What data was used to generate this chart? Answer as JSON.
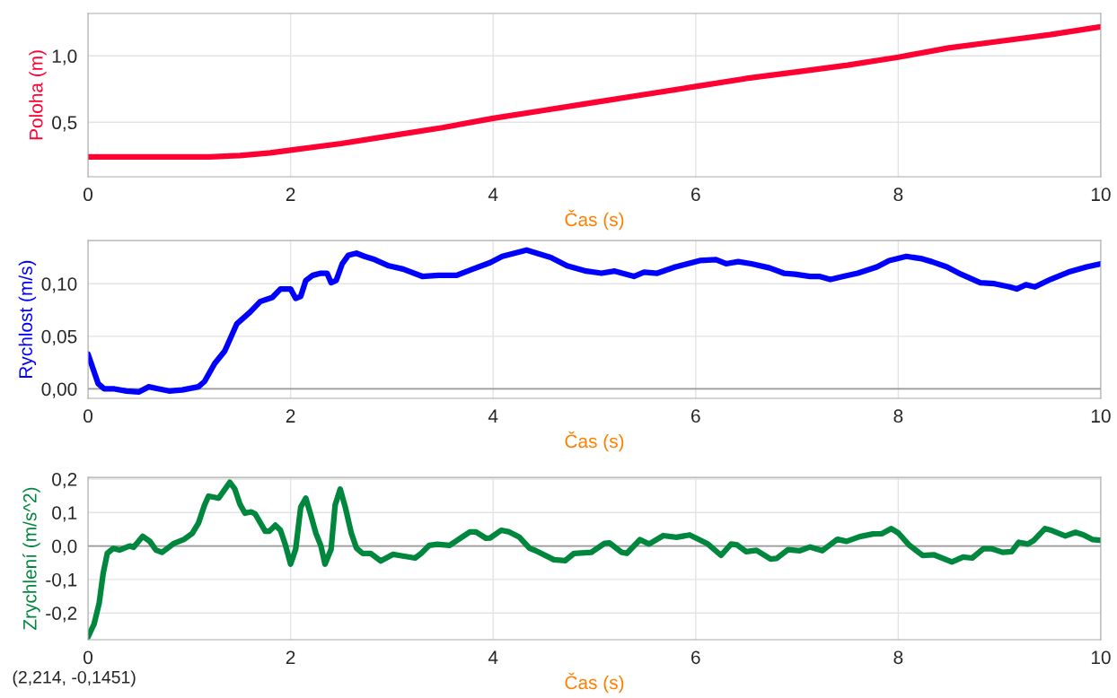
{
  "chart_data": [
    {
      "type": "line",
      "xlabel": "Čas (s)",
      "ylabel": "Poloha (m)",
      "grid": true,
      "xlim": [
        0,
        10
      ],
      "ylim": [
        0.09,
        1.32
      ],
      "xticks": [
        0,
        2,
        4,
        6,
        8,
        10
      ],
      "yticks": [
        {
          "value": 0.5,
          "label": "0,5"
        },
        {
          "value": 1.0,
          "label": "1,0"
        }
      ],
      "series": [
        {
          "name": null,
          "color": "#ff0033",
          "x": [
            0,
            0.5,
            1.0,
            1.2,
            1.5,
            1.8,
            2.0,
            2.5,
            3.0,
            3.5,
            4.0,
            4.5,
            5.0,
            5.5,
            6.0,
            6.5,
            7.0,
            7.5,
            8.0,
            8.5,
            9.0,
            9.5,
            10.0
          ],
          "values": [
            0.24,
            0.24,
            0.24,
            0.24,
            0.25,
            0.27,
            0.29,
            0.34,
            0.4,
            0.46,
            0.53,
            0.59,
            0.65,
            0.71,
            0.77,
            0.83,
            0.88,
            0.93,
            0.99,
            1.06,
            1.11,
            1.16,
            1.22
          ]
        }
      ]
    },
    {
      "type": "line",
      "xlabel": "Čas (s)",
      "ylabel": "Rychlost (m/s)",
      "grid": true,
      "xlim": [
        0,
        10
      ],
      "ylim": [
        -0.009,
        0.141
      ],
      "xticks": [
        0,
        2,
        4,
        6,
        8,
        10
      ],
      "yticks": [
        {
          "value": 0,
          "label": "0,00"
        },
        {
          "value": 0.05,
          "label": "0,05"
        },
        {
          "value": 0.1,
          "label": "0,10"
        }
      ],
      "ref_lines": [
        {
          "axis": "y",
          "value": 0,
          "color": "#9a9a9a"
        }
      ],
      "series": [
        {
          "name": null,
          "color": "#0000ff",
          "x": [
            0,
            0.1,
            0.16,
            0.26,
            0.38,
            0.5,
            0.6,
            0.7,
            0.8,
            0.93,
            1.09,
            1.15,
            1.25,
            1.35,
            1.47,
            1.6,
            1.7,
            1.82,
            1.9,
            2.0,
            2.05,
            2.1,
            2.15,
            2.22,
            2.3,
            2.36,
            2.4,
            2.45,
            2.51,
            2.57,
            2.65,
            2.73,
            2.83,
            2.97,
            3.11,
            3.3,
            3.46,
            3.64,
            3.8,
            3.97,
            4.09,
            4.33,
            4.57,
            4.73,
            4.92,
            5.07,
            5.2,
            5.39,
            5.49,
            5.62,
            5.8,
            6.04,
            6.2,
            6.3,
            6.42,
            6.55,
            6.73,
            6.87,
            6.98,
            7.13,
            7.22,
            7.33,
            7.46,
            7.6,
            7.79,
            7.91,
            8.08,
            8.22,
            8.33,
            8.48,
            8.62,
            8.81,
            8.95,
            9.1,
            9.17,
            9.26,
            9.35,
            9.5,
            9.68,
            9.86,
            10.0
          ],
          "values": [
            0.033,
            0.005,
            0.0,
            0.0,
            -0.002,
            -0.003,
            0.002,
            0.0,
            -0.002,
            -0.001,
            0.002,
            0.007,
            0.024,
            0.036,
            0.062,
            0.073,
            0.083,
            0.087,
            0.095,
            0.095,
            0.086,
            0.088,
            0.103,
            0.108,
            0.11,
            0.11,
            0.101,
            0.103,
            0.119,
            0.127,
            0.129,
            0.126,
            0.123,
            0.117,
            0.114,
            0.107,
            0.108,
            0.108,
            0.114,
            0.12,
            0.126,
            0.132,
            0.125,
            0.117,
            0.112,
            0.11,
            0.112,
            0.107,
            0.111,
            0.11,
            0.116,
            0.122,
            0.123,
            0.119,
            0.121,
            0.119,
            0.115,
            0.11,
            0.109,
            0.107,
            0.107,
            0.104,
            0.107,
            0.11,
            0.116,
            0.122,
            0.126,
            0.124,
            0.121,
            0.116,
            0.109,
            0.101,
            0.1,
            0.097,
            0.095,
            0.099,
            0.097,
            0.104,
            0.111,
            0.116,
            0.119
          ]
        }
      ]
    },
    {
      "type": "line",
      "xlabel": "Čas (s)",
      "ylabel": "Zrychlení (m/s^2)",
      "grid": true,
      "xlim": [
        0,
        10
      ],
      "ylim": [
        -0.28,
        0.205
      ],
      "xticks": [
        0,
        2,
        4,
        6,
        8,
        10
      ],
      "yticks": [
        {
          "value": -0.2,
          "label": "-0,2"
        },
        {
          "value": -0.1,
          "label": "-0,1"
        },
        {
          "value": 0,
          "label": "0,0"
        },
        {
          "value": 0.1,
          "label": "0,1"
        },
        {
          "value": 0.2,
          "label": "0,2"
        }
      ],
      "ref_lines": [
        {
          "axis": "y",
          "value": 0,
          "color": "#9a9a9a"
        }
      ],
      "annotations": [
        "(2,214, -0,1451)"
      ],
      "series": [
        {
          "name": null,
          "color": "#00873e",
          "x": [
            0,
            0.06,
            0.11,
            0.15,
            0.19,
            0.25,
            0.31,
            0.41,
            0.45,
            0.54,
            0.61,
            0.67,
            0.73,
            0.85,
            0.95,
            1.03,
            1.09,
            1.15,
            1.19,
            1.29,
            1.4,
            1.45,
            1.5,
            1.55,
            1.61,
            1.65,
            1.75,
            1.79,
            1.85,
            1.9,
            1.95,
            2.0,
            2.05,
            2.1,
            2.15,
            2.2,
            2.25,
            2.3,
            2.34,
            2.4,
            2.44,
            2.49,
            2.54,
            2.6,
            2.65,
            2.71,
            2.79,
            2.89,
            3.01,
            3.11,
            3.23,
            3.29,
            3.37,
            3.45,
            3.57,
            3.69,
            3.77,
            3.83,
            3.93,
            3.97,
            4.08,
            4.16,
            4.26,
            4.36,
            4.42,
            4.6,
            4.71,
            4.8,
            4.97,
            5.1,
            5.15,
            5.27,
            5.32,
            5.45,
            5.54,
            5.68,
            5.81,
            5.94,
            6.12,
            6.25,
            6.35,
            6.41,
            6.5,
            6.6,
            6.74,
            6.8,
            6.91,
            7.03,
            7.13,
            7.25,
            7.4,
            7.49,
            7.62,
            7.75,
            7.84,
            7.93,
            8.0,
            8.11,
            8.24,
            8.35,
            8.53,
            8.64,
            8.73,
            8.84,
            8.92,
            9.03,
            9.12,
            9.19,
            9.28,
            9.34,
            9.45,
            9.5,
            9.65,
            9.75,
            9.83,
            9.92,
            9.99
          ],
          "values": [
            -0.272,
            -0.233,
            -0.171,
            -0.081,
            -0.022,
            -0.007,
            -0.012,
            0.0,
            -0.004,
            0.029,
            0.014,
            -0.012,
            -0.019,
            0.008,
            0.02,
            0.038,
            0.068,
            0.122,
            0.149,
            0.143,
            0.19,
            0.17,
            0.125,
            0.098,
            0.102,
            0.096,
            0.044,
            0.044,
            0.062,
            0.047,
            0.002,
            -0.054,
            -0.01,
            0.116,
            0.143,
            0.092,
            0.038,
            0.0,
            -0.054,
            -0.01,
            0.122,
            0.17,
            0.116,
            0.038,
            -0.006,
            -0.022,
            -0.022,
            -0.045,
            -0.025,
            -0.03,
            -0.036,
            -0.022,
            0.002,
            0.005,
            0.002,
            0.026,
            0.042,
            0.042,
            0.023,
            0.024,
            0.047,
            0.042,
            0.026,
            -0.007,
            -0.014,
            -0.041,
            -0.044,
            -0.022,
            -0.019,
            0.008,
            0.009,
            -0.019,
            -0.022,
            0.019,
            0.006,
            0.031,
            0.026,
            0.033,
            0.006,
            -0.028,
            0.006,
            0.003,
            -0.017,
            -0.013,
            -0.039,
            -0.037,
            -0.011,
            -0.014,
            -0.003,
            -0.014,
            0.02,
            0.014,
            0.028,
            0.036,
            0.037,
            0.052,
            0.039,
            0.002,
            -0.028,
            -0.026,
            -0.048,
            -0.033,
            -0.036,
            -0.008,
            -0.008,
            -0.019,
            -0.017,
            0.011,
            0.006,
            0.017,
            0.052,
            0.048,
            0.03,
            0.041,
            0.033,
            0.019,
            0.017
          ]
        }
      ]
    }
  ]
}
